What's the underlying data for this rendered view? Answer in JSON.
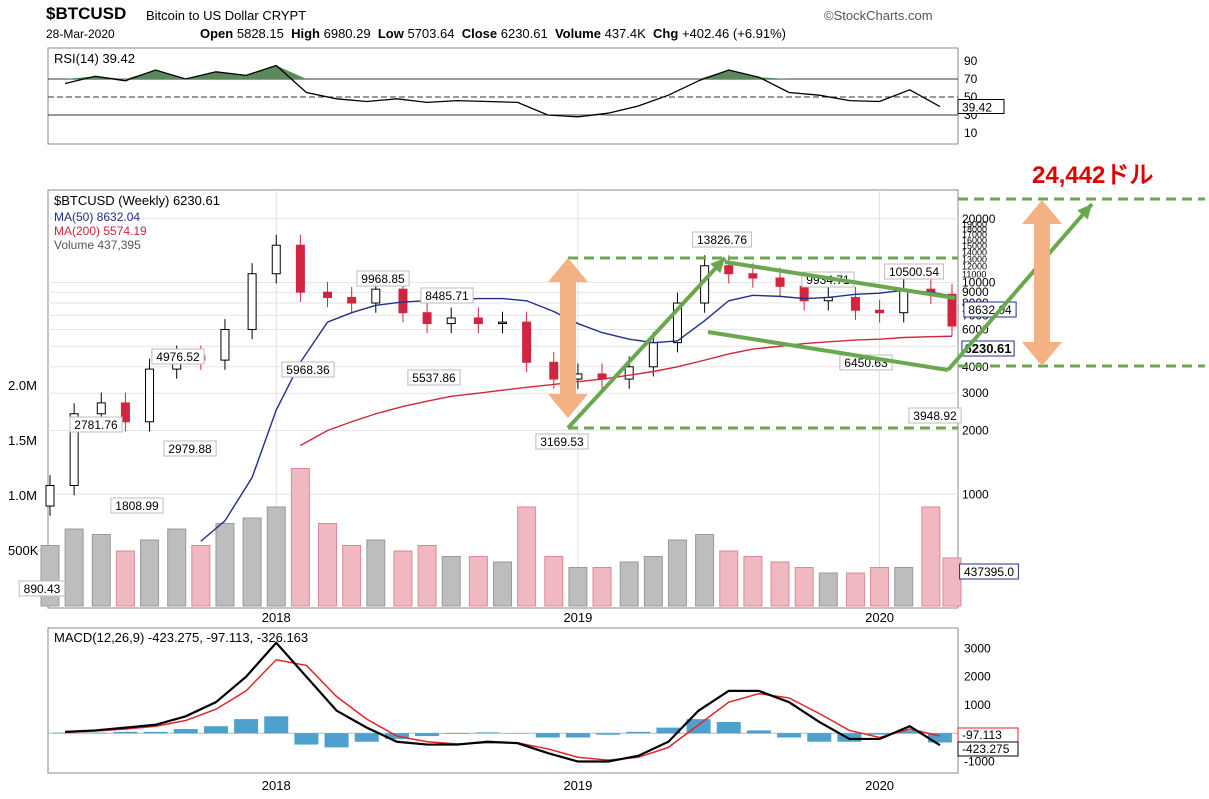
{
  "header": {
    "symbol": "$BTCUSD",
    "description": "Bitcoin to US Dollar",
    "exchange": "CRYPT",
    "brand": "©StockCharts.com",
    "date": "28-Mar-2020",
    "open_label": "Open",
    "open": "5828.15",
    "high_label": "High",
    "high": "6980.29",
    "low_label": "Low",
    "low": "5703.64",
    "close_label": "Close",
    "close": "6230.61",
    "volume_label": "Volume",
    "volume": "437.4K",
    "chg_label": "Chg",
    "chg": "+402.46 (+6.91%)"
  },
  "colors": {
    "up": "#000000",
    "down": "#d2243f",
    "ma50": "#1f2f8a",
    "ma200": "#d2243f",
    "rsi_fill": "#5a8a5a",
    "macd_hist": "#2f8fc4",
    "macd": "#000000",
    "signal": "#e0262a",
    "annot_green": "#6aa84f",
    "annot_orange": "#f4b183",
    "target": "#e00000"
  },
  "chart_data": [
    {
      "type": "line",
      "title": "RSI(14) 39.42",
      "y_ticks": [
        "90",
        "70",
        "50",
        "30",
        "10"
      ],
      "ylim": [
        0,
        100
      ],
      "reference_lines": [
        70,
        50,
        30
      ],
      "last_value_label": "39.42",
      "x": [
        2017.3,
        2017.4,
        2017.5,
        2017.6,
        2017.7,
        2017.8,
        2017.9,
        2018.0,
        2018.1,
        2018.2,
        2018.3,
        2018.4,
        2018.5,
        2018.6,
        2018.7,
        2018.8,
        2018.9,
        2019.0,
        2019.1,
        2019.2,
        2019.3,
        2019.4,
        2019.5,
        2019.6,
        2019.7,
        2019.8,
        2019.9,
        2020.0,
        2020.1,
        2020.2
      ],
      "series": [
        {
          "values": [
            65,
            73,
            68,
            80,
            70,
            78,
            74,
            85,
            55,
            48,
            45,
            48,
            44,
            46,
            45,
            44,
            30,
            28,
            32,
            40,
            52,
            68,
            80,
            72,
            55,
            52,
            46,
            45,
            58,
            39.42
          ]
        }
      ]
    },
    {
      "type": "candlestick",
      "title": "$BTCUSD (Weekly) 6230.61",
      "scale": "log",
      "legend": [
        {
          "name": "MA(50) 8632.04",
          "color": "#1f2f8a"
        },
        {
          "name": "MA(200) 5574.19",
          "color": "#d2243f"
        },
        {
          "name": "Volume 437,395",
          "color": "#555555"
        }
      ],
      "y_ticks": [
        "20000",
        "19000",
        "18000",
        "17000",
        "16000",
        "15000",
        "14000",
        "13000",
        "12000",
        "11000",
        "10000",
        "9000",
        "8000",
        "7000",
        "6000",
        "5000",
        "4000",
        "3000",
        "2000",
        "1000"
      ],
      "volume_ticks": [
        "2.0M",
        "1.5M",
        "1.0M",
        "500K"
      ],
      "x_ticks": [
        "2018",
        "2019",
        "2020"
      ],
      "x": [
        2017.25,
        2017.33,
        2017.42,
        2017.5,
        2017.58,
        2017.67,
        2017.75,
        2017.83,
        2017.92,
        2018.0,
        2018.08,
        2018.17,
        2018.25,
        2018.33,
        2018.42,
        2018.5,
        2018.58,
        2018.67,
        2018.75,
        2018.83,
        2018.92,
        2019.0,
        2019.08,
        2019.17,
        2019.25,
        2019.33,
        2019.42,
        2019.5,
        2019.58,
        2019.67,
        2019.75,
        2019.83,
        2019.92,
        2020.0,
        2020.08,
        2020.17,
        2020.24
      ],
      "close": [
        1100,
        2400,
        2700,
        2200,
        3900,
        4500,
        4300,
        6000,
        11000,
        15000,
        9000,
        8500,
        8000,
        9300,
        7200,
        6400,
        6800,
        6400,
        6500,
        4200,
        3500,
        3700,
        3500,
        4000,
        5200,
        8000,
        12000,
        11000,
        10500,
        9600,
        8200,
        8500,
        7400,
        7200,
        9300,
        8800,
        6230.61
      ],
      "volume_millions": [
        0.55,
        0.7,
        0.65,
        0.5,
        0.6,
        0.7,
        0.55,
        0.75,
        0.8,
        0.9,
        1.25,
        0.75,
        0.55,
        0.6,
        0.5,
        0.55,
        0.45,
        0.45,
        0.4,
        0.9,
        0.45,
        0.35,
        0.35,
        0.4,
        0.45,
        0.6,
        0.65,
        0.5,
        0.45,
        0.4,
        0.35,
        0.3,
        0.3,
        0.35,
        0.35,
        0.9,
        0.437
      ],
      "ma50": [
        null,
        null,
        null,
        null,
        null,
        null,
        600,
        750,
        1200,
        2500,
        4200,
        6500,
        7200,
        7800,
        8100,
        8200,
        8300,
        8400,
        8400,
        8200,
        7300,
        6400,
        5800,
        5400,
        5200,
        5300,
        6600,
        8200,
        8700,
        8600,
        8400,
        8500,
        8800,
        8900,
        9200,
        9000,
        8632.04
      ],
      "ma200": [
        null,
        null,
        null,
        null,
        null,
        null,
        null,
        null,
        null,
        null,
        1700,
        2000,
        2200,
        2400,
        2600,
        2750,
        2900,
        3000,
        3100,
        3200,
        3300,
        3400,
        3500,
        3650,
        3800,
        4000,
        4300,
        4600,
        4850,
        5000,
        5150,
        5250,
        5350,
        5400,
        5500,
        5550,
        5574.19
      ],
      "labels": [
        "890.43",
        "2781.76",
        "1808.99",
        "4976.52",
        "2979.88",
        "5968.36",
        "9968.85",
        "8485.71",
        "5537.86",
        "3169.53",
        "13826.76",
        "9934.71",
        "10500.54",
        "6450.63",
        "3948.92",
        "6230.61",
        "8632.04",
        "437395.0"
      ],
      "annotation_target": "24,442ドル"
    },
    {
      "type": "line",
      "title": "MACD(12,26,9) -423.275, -97.113, -326.163",
      "y_ticks": [
        "3000",
        "2000",
        "1000",
        "0",
        "-1000"
      ],
      "ylim": [
        -1300,
        3300
      ],
      "x_ticks": [
        "2018",
        "2019",
        "2020"
      ],
      "last_value_labels": [
        "-97.113",
        "-423.275"
      ],
      "x": [
        2017.3,
        2017.4,
        2017.5,
        2017.6,
        2017.7,
        2017.8,
        2017.9,
        2018.0,
        2018.1,
        2018.2,
        2018.3,
        2018.4,
        2018.5,
        2018.6,
        2018.7,
        2018.8,
        2018.9,
        2019.0,
        2019.1,
        2019.2,
        2019.3,
        2019.4,
        2019.5,
        2019.6,
        2019.7,
        2019.8,
        2019.9,
        2020.0,
        2020.1,
        2020.2
      ],
      "series": [
        {
          "name": "MACD",
          "values": [
            50,
            100,
            200,
            300,
            600,
            1100,
            2000,
            3200,
            2000,
            800,
            200,
            -300,
            -400,
            -400,
            -300,
            -350,
            -700,
            -1000,
            -1000,
            -800,
            -300,
            800,
            1500,
            1500,
            1100,
            400,
            -200,
            -200,
            250,
            -423.275
          ]
        },
        {
          "name": "Signal",
          "values": [
            30,
            80,
            150,
            250,
            450,
            850,
            1500,
            2600,
            2400,
            1300,
            500,
            -100,
            -300,
            -380,
            -330,
            -340,
            -550,
            -850,
            -950,
            -850,
            -500,
            300,
            1100,
            1400,
            1250,
            700,
            100,
            -150,
            150,
            -97.113
          ]
        },
        {
          "name": "Histogram",
          "values": [
            20,
            20,
            50,
            50,
            150,
            250,
            500,
            600,
            -400,
            -500,
            -300,
            -200,
            -100,
            -20,
            30,
            -10,
            -150,
            -150,
            -50,
            50,
            200,
            500,
            400,
            100,
            -150,
            -300,
            -300,
            -50,
            100,
            -326.163
          ]
        }
      ]
    }
  ]
}
